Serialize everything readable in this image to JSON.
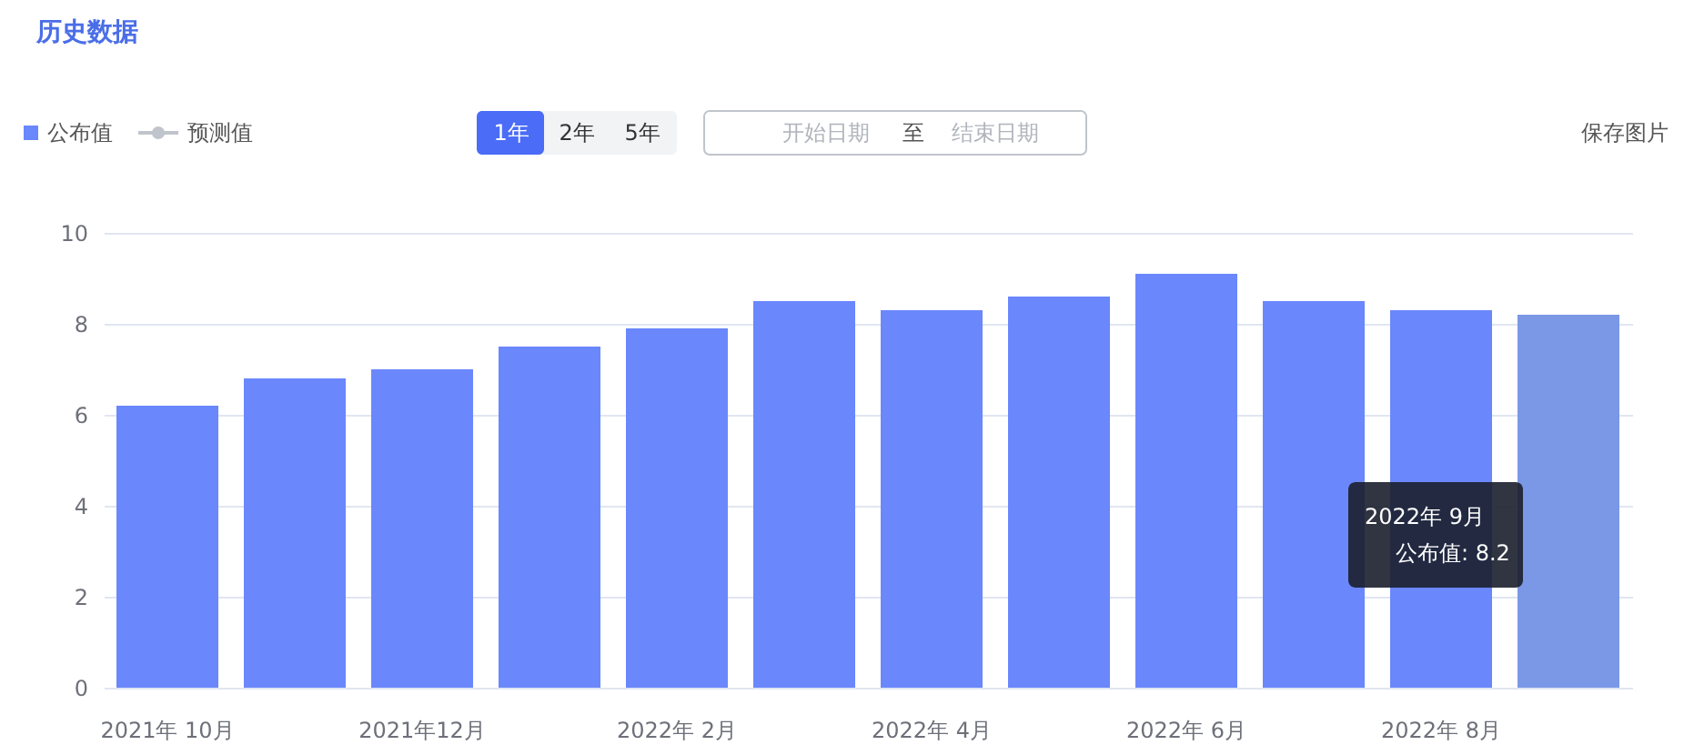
{
  "chart_data": {
    "type": "bar",
    "title": "历史数据",
    "categories": [
      "2021年 10月",
      null,
      "2021年12月",
      null,
      "2022年 2月",
      null,
      "2022年 4月",
      null,
      "2022年 6月",
      null,
      "2022年 8月",
      null
    ],
    "series": [
      {
        "name": "公布值",
        "color": "#6a87fc",
        "colors": [
          "#6a87fc",
          "#6a87fc",
          "#6a87fc",
          "#6a87fc",
          "#6a87fc",
          "#6a87fc",
          "#6a87fc",
          "#6a87fc",
          "#6a87fc",
          "#6a87fc",
          "#6a87fc",
          "#7b98e6"
        ],
        "values": [
          6.2,
          6.8,
          7.0,
          7.5,
          7.9,
          8.5,
          8.3,
          8.6,
          9.1,
          8.5,
          8.3,
          8.2
        ]
      },
      {
        "name": "预测值",
        "type": "line",
        "color": "#c0c4cc",
        "marker": "circle",
        "values": [
          null,
          null,
          null,
          null,
          null,
          null,
          null,
          null,
          null,
          null,
          null,
          null
        ]
      }
    ],
    "ylim": [
      0,
      10
    ],
    "yticks": [
      0,
      2,
      4,
      6,
      8,
      10
    ],
    "grid": "y",
    "legend": "top left",
    "annotations": [
      "2022年 9月",
      "公布值: 8.2",
      "1年",
      "2年",
      "5年",
      "开始日期",
      "至",
      "结束日期",
      "保存图片"
    ]
  }
}
